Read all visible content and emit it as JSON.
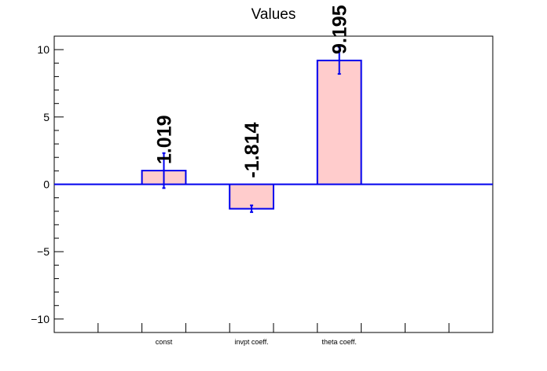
{
  "chart_data": {
    "type": "bar",
    "title": "Values",
    "xlabel": "",
    "ylabel": "",
    "categories": [
      "const",
      "invpt coeff.",
      "theta coeff."
    ],
    "values": [
      1.019,
      -1.814,
      9.195
    ],
    "errors": [
      1.3,
      0.25,
      1.0
    ],
    "data_labels": [
      "1.019",
      "-1.814",
      "9.195"
    ],
    "ylim": [
      -11,
      11
    ],
    "yticks": [
      -10,
      -5,
      0,
      5,
      10
    ],
    "ytick_labels": [
      "−10",
      "−5",
      "0",
      "5",
      "10"
    ],
    "grid": false,
    "legend": "none",
    "colors": {
      "bar_fill": "#ffcccc",
      "bar_edge": "#0000ee",
      "zero_line": "#0000ee",
      "axis": "#000000"
    }
  }
}
